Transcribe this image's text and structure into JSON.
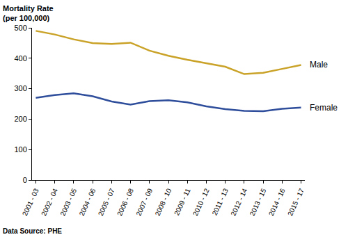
{
  "chart_data": {
    "type": "line",
    "y_label": "Mortality Rate\n(per 100,000)",
    "annotations": [
      "Data Source: PHE"
    ],
    "categories": [
      "2001 - 03",
      "2002 - 04",
      "2003 - 05",
      "2004 - 06",
      "2005 - 07",
      "2006 - 08",
      "2007 - 09",
      "2008 - 10",
      "2009 - 11",
      "2010 - 12",
      "2011 - 13",
      "2012 - 14",
      "2013 - 15",
      "2014 - 16",
      "2015 - 17"
    ],
    "series": [
      {
        "name": "Male",
        "color": "#c9a227",
        "values": [
          490,
          478,
          462,
          450,
          447,
          451,
          425,
          408,
          395,
          383,
          372,
          348,
          352,
          365,
          378
        ]
      },
      {
        "name": "Female",
        "color": "#2e4d9b",
        "values": [
          270,
          279,
          285,
          275,
          258,
          248,
          259,
          262,
          255,
          242,
          233,
          227,
          226,
          234,
          238
        ]
      }
    ],
    "ylim": [
      0,
      500
    ],
    "yticks": [
      0,
      100,
      200,
      300,
      400,
      500
    ],
    "grid": false
  }
}
